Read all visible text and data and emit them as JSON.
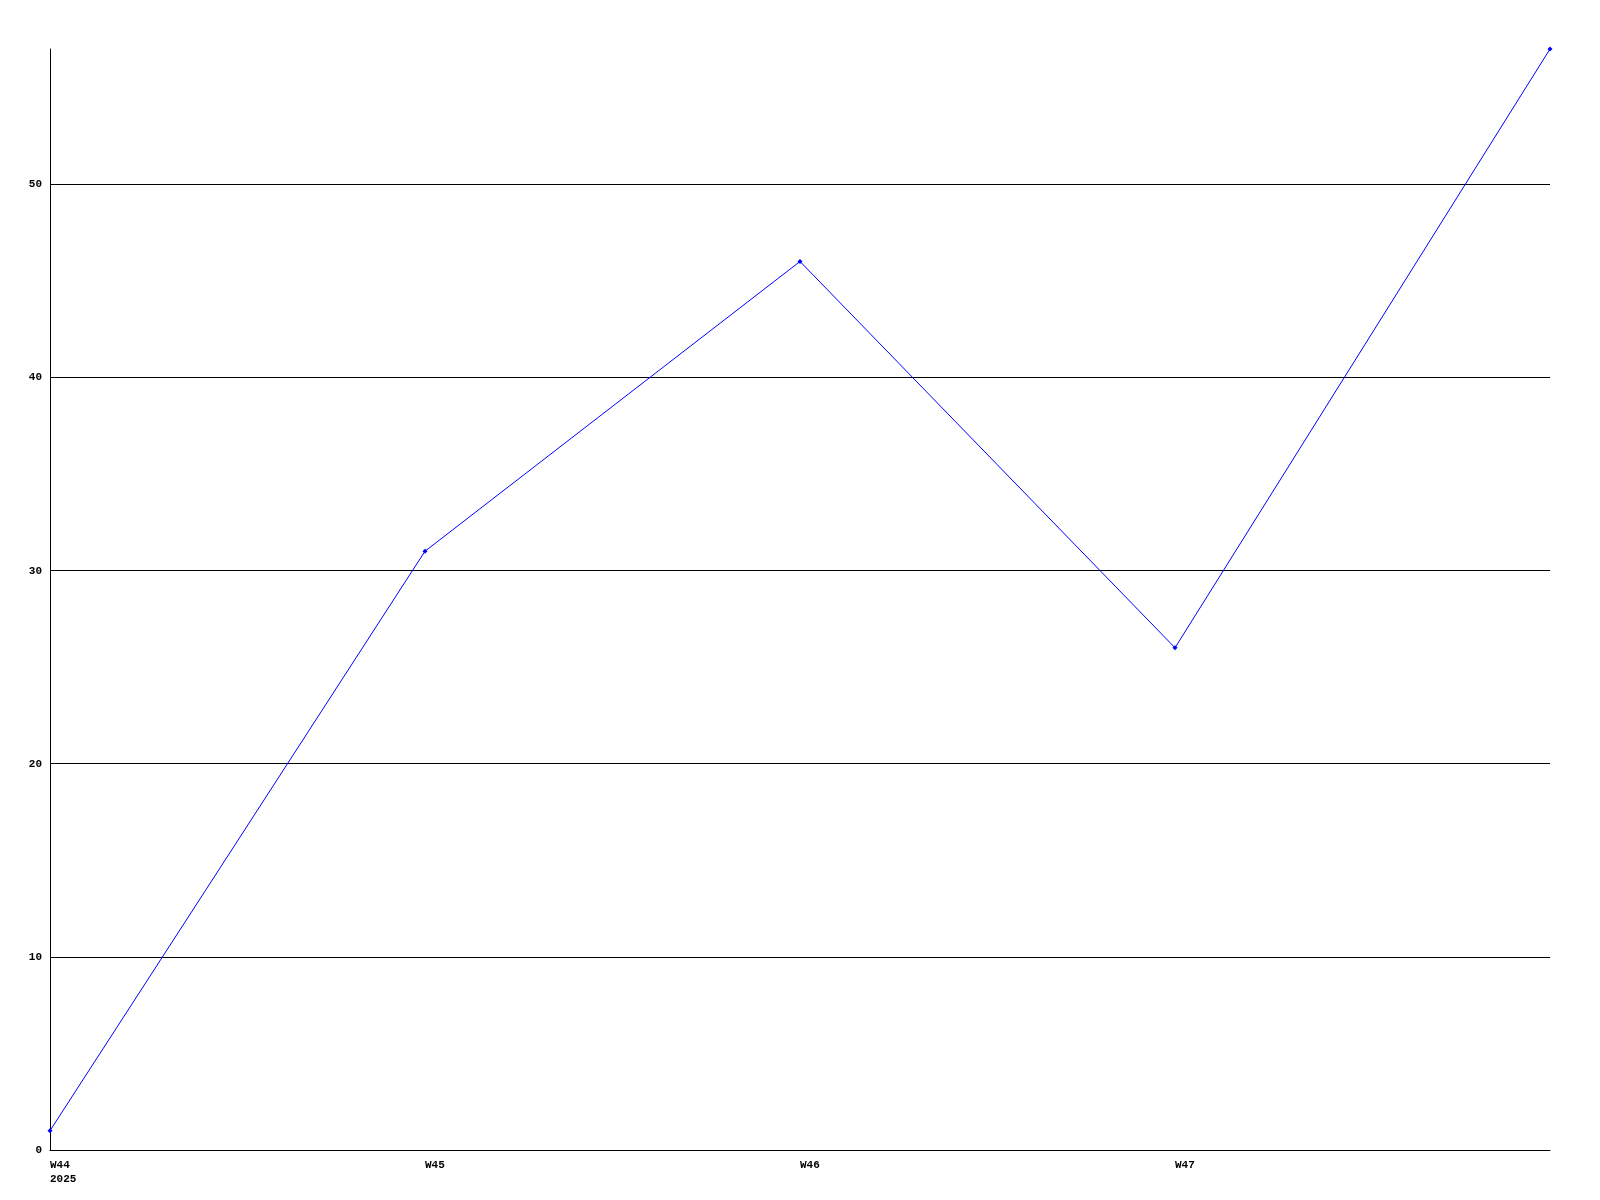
{
  "chart_data": {
    "type": "line",
    "categories": [
      "W44\n2025",
      "W45",
      "W46",
      "W47",
      null
    ],
    "series": [
      {
        "color": "#0000ff",
        "values": [
          1,
          31,
          46,
          26,
          57
        ]
      }
    ],
    "ylim": [
      0,
      57
    ],
    "yticks": [
      0,
      10,
      20,
      30,
      40,
      50
    ],
    "grid": "y",
    "marker": "diamond",
    "line_style": "solid"
  }
}
